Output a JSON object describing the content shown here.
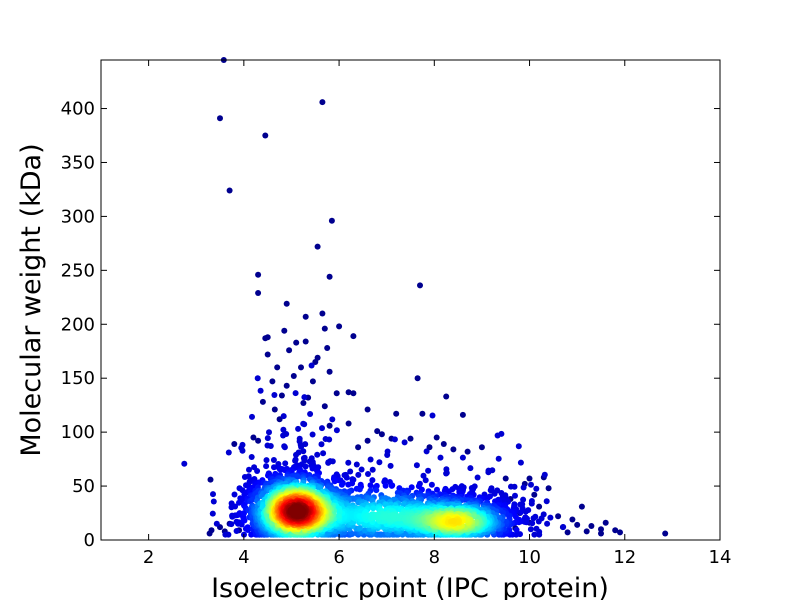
{
  "chart_data": {
    "type": "scatter",
    "title": "",
    "xlabel": "Isoelectric point (IPC_protein)",
    "ylabel": "Molecular weight (kDa)",
    "xlim": [
      1,
      14
    ],
    "ylim": [
      0,
      445
    ],
    "x_ticks": [
      2,
      4,
      6,
      8,
      10,
      12,
      14
    ],
    "y_ticks": [
      0,
      50,
      100,
      150,
      200,
      250,
      300,
      350,
      400
    ],
    "grid": false,
    "legend": "none",
    "colormap": "jet (point density)",
    "colors": {
      "low_density": "#00008f",
      "high_density": "#800000",
      "frame": "#000000"
    },
    "clusters": [
      {
        "description": "acidic main cluster",
        "center_x": 5.1,
        "center_y": 27,
        "density": "highest"
      },
      {
        "description": "basic cluster",
        "center_x": 8.5,
        "center_y": 18,
        "density": "moderate"
      }
    ],
    "points": [
      [
        3.58,
        445
      ],
      [
        3.5,
        391
      ],
      [
        5.65,
        406
      ],
      [
        4.45,
        375
      ],
      [
        3.7,
        324
      ],
      [
        5.85,
        296
      ],
      [
        5.55,
        272
      ],
      [
        4.3,
        246
      ],
      [
        5.8,
        244
      ],
      [
        4.3,
        229
      ],
      [
        7.7,
        236
      ],
      [
        4.9,
        219
      ],
      [
        5.65,
        210
      ],
      [
        5.3,
        207
      ],
      [
        6.0,
        198
      ],
      [
        5.7,
        196
      ],
      [
        4.85,
        194
      ],
      [
        6.3,
        189
      ],
      [
        4.5,
        188
      ],
      [
        4.45,
        187
      ],
      [
        5.3,
        184
      ],
      [
        5.1,
        183
      ],
      [
        4.95,
        176
      ],
      [
        5.75,
        178
      ],
      [
        5.55,
        169
      ],
      [
        4.5,
        172
      ],
      [
        5.5,
        165
      ],
      [
        5.2,
        160
      ],
      [
        4.7,
        160
      ],
      [
        5.8,
        156
      ],
      [
        7.65,
        150
      ],
      [
        4.6,
        147
      ],
      [
        5.45,
        147
      ],
      [
        5.05,
        152
      ],
      [
        6.2,
        137
      ],
      [
        6.3,
        136
      ],
      [
        5.95,
        136
      ],
      [
        4.9,
        143
      ],
      [
        5.35,
        132
      ],
      [
        4.8,
        134
      ],
      [
        4.4,
        128
      ],
      [
        8.25,
        133
      ],
      [
        7.75,
        117
      ],
      [
        8.6,
        116
      ],
      [
        7.2,
        117
      ],
      [
        6.6,
        121
      ],
      [
        5.7,
        124
      ],
      [
        5.25,
        127
      ],
      [
        4.65,
        121
      ],
      [
        3.8,
        89
      ],
      [
        4.2,
        95
      ],
      [
        4.3,
        92
      ],
      [
        3.3,
        56
      ],
      [
        3.28,
        6
      ],
      [
        3.32,
        9
      ],
      [
        6.2,
        108
      ],
      [
        6.8,
        101
      ],
      [
        6.9,
        98
      ],
      [
        7.1,
        94
      ],
      [
        7.5,
        94
      ],
      [
        8.05,
        95
      ],
      [
        8.2,
        89
      ],
      [
        8.4,
        84
      ],
      [
        8.7,
        82
      ],
      [
        9.0,
        86
      ],
      [
        7.9,
        86
      ],
      [
        6.6,
        92
      ],
      [
        6.4,
        86
      ],
      [
        5.8,
        106
      ],
      [
        4.75,
        112
      ],
      [
        9.5,
        57
      ],
      [
        9.9,
        52
      ],
      [
        10.0,
        57
      ],
      [
        10.3,
        58
      ],
      [
        10.4,
        48
      ],
      [
        10.1,
        42
      ],
      [
        10.2,
        31
      ],
      [
        10.6,
        22
      ],
      [
        10.9,
        19
      ],
      [
        11.1,
        31
      ],
      [
        11.0,
        14
      ],
      [
        11.3,
        13
      ],
      [
        11.5,
        10
      ],
      [
        11.6,
        16
      ],
      [
        11.8,
        9
      ],
      [
        11.9,
        7
      ],
      [
        12.85,
        6
      ],
      [
        11.2,
        8
      ],
      [
        10.8,
        7
      ],
      [
        10.7,
        12
      ],
      [
        11.5,
        6
      ],
      [
        9.7,
        11
      ],
      [
        9.8,
        25
      ],
      [
        9.6,
        38
      ],
      [
        10.0,
        16
      ],
      [
        3.5,
        12
      ],
      [
        3.7,
        15
      ],
      [
        3.9,
        9
      ],
      [
        3.6,
        8
      ]
    ]
  }
}
